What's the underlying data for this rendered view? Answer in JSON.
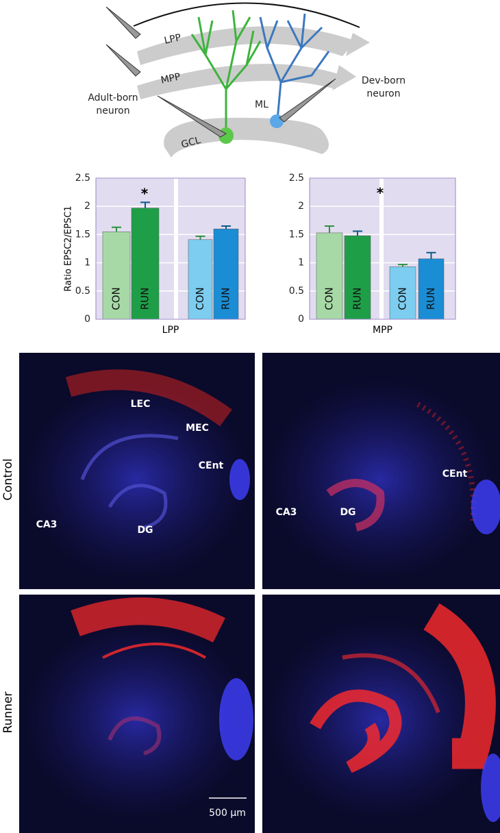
{
  "diagram": {
    "pathways": [
      "LPP",
      "MPP"
    ],
    "layers": [
      "ML",
      "GCL"
    ],
    "adult_label": [
      "Adult-born",
      "neuron"
    ],
    "dev_label": [
      "Dev-born",
      "neuron"
    ]
  },
  "chart_data": [
    {
      "type": "bar",
      "x_label": "LPP",
      "y_label": "Ratio EPSC2/EPSC1",
      "categories": [
        "CON",
        "RUN",
        "CON",
        "RUN"
      ],
      "values": [
        1.55,
        1.97,
        1.41,
        1.6
      ],
      "errors": [
        0.08,
        0.1,
        0.06,
        0.05
      ],
      "colors": [
        "#a6d9a6",
        "#1f9e48",
        "#7ccdf0",
        "#1a8dd5"
      ],
      "ylim": [
        0,
        2.5
      ],
      "yticks": [
        0,
        0.5,
        1,
        1.5,
        2,
        2.5
      ],
      "grid": true,
      "annotations": [
        "*"
      ]
    },
    {
      "type": "bar",
      "x_label": "MPP",
      "categories": [
        "CON",
        "RUN",
        "CON",
        "RUN"
      ],
      "values": [
        1.53,
        1.48,
        0.93,
        1.07
      ],
      "errors": [
        0.12,
        0.08,
        0.04,
        0.11
      ],
      "colors": [
        "#a6d9a6",
        "#1f9e48",
        "#7ccdf0",
        "#1a8dd5"
      ],
      "ylim": [
        0,
        2.5
      ],
      "yticks": [
        0,
        0.5,
        1,
        1.5,
        2,
        2.5
      ],
      "grid": true,
      "annotations": [
        "*"
      ]
    }
  ],
  "images": {
    "rows": [
      "Control",
      "Runner"
    ],
    "control_left": [
      "LEC",
      "MEC",
      "CEnt",
      "CA3",
      "DG"
    ],
    "control_right": [
      "CEnt",
      "CA3",
      "DG"
    ],
    "scale_bar": "500 μm"
  }
}
